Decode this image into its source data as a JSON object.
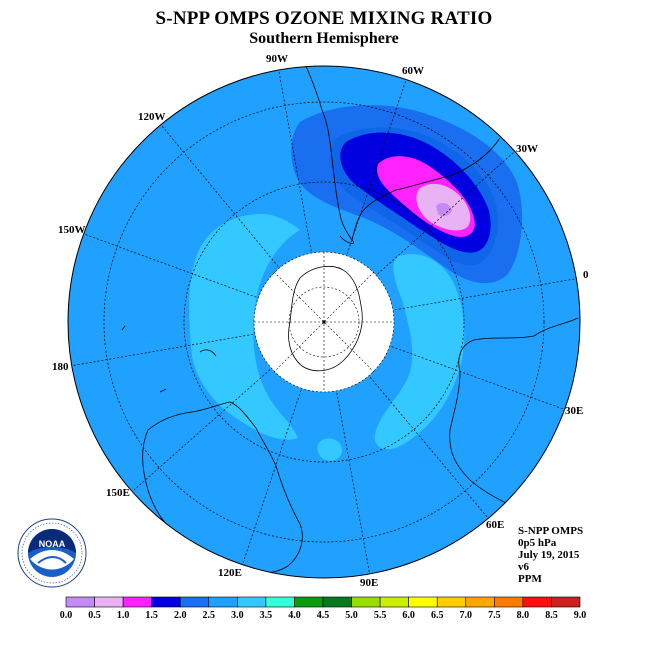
{
  "title": "S-NPP OMPS OZONE MIXING RATIO",
  "subtitle": "Southern Hemisphere",
  "longitude_labels": [
    "90W",
    "60W",
    "30W",
    "0",
    "30E",
    "60E",
    "90E",
    "120E",
    "150E",
    "180",
    "150W",
    "120W"
  ],
  "info": {
    "instrument": "S-NPP OMPS",
    "level": "0p5 hPa",
    "date": "July 19, 2015",
    "version": "v6",
    "units": "PPM"
  },
  "logo": {
    "text": "NOAA",
    "ring_text": "NATIONAL OCEANIC AND ATMOSPHERIC ADMINISTRATION · U.S. DEPARTMENT OF COMMERCE"
  },
  "colorbar": {
    "ticks": [
      "0.0",
      "0.5",
      "1.0",
      "1.5",
      "2.0",
      "2.5",
      "3.0",
      "3.5",
      "4.0",
      "4.5",
      "5.0",
      "5.5",
      "6.0",
      "6.5",
      "7.0",
      "7.5",
      "8.0",
      "8.5",
      "9.0"
    ],
    "colors": [
      "#c58af5",
      "#e8b2f5",
      "#ff22ff",
      "#0000e0",
      "#1a6ef0",
      "#20a0ff",
      "#33c8ff",
      "#33ffd8",
      "#109a10",
      "#077a20",
      "#99dd00",
      "#ccee00",
      "#ffff00",
      "#ffcc00",
      "#ffa600",
      "#ff7a00",
      "#ff1010",
      "#cc2020"
    ]
  },
  "map_colors": {
    "ocean_band_2_5": "#1a6ef0",
    "band_3_0": "#20a0ff",
    "band_3_5": "#33c8ff",
    "band_2_0": "#0f66e8",
    "band_1_5": "#0000e0",
    "band_1_0": "#ff22ff",
    "band_0_5": "#e8b2f5",
    "band_0_0": "#c58af5"
  }
}
